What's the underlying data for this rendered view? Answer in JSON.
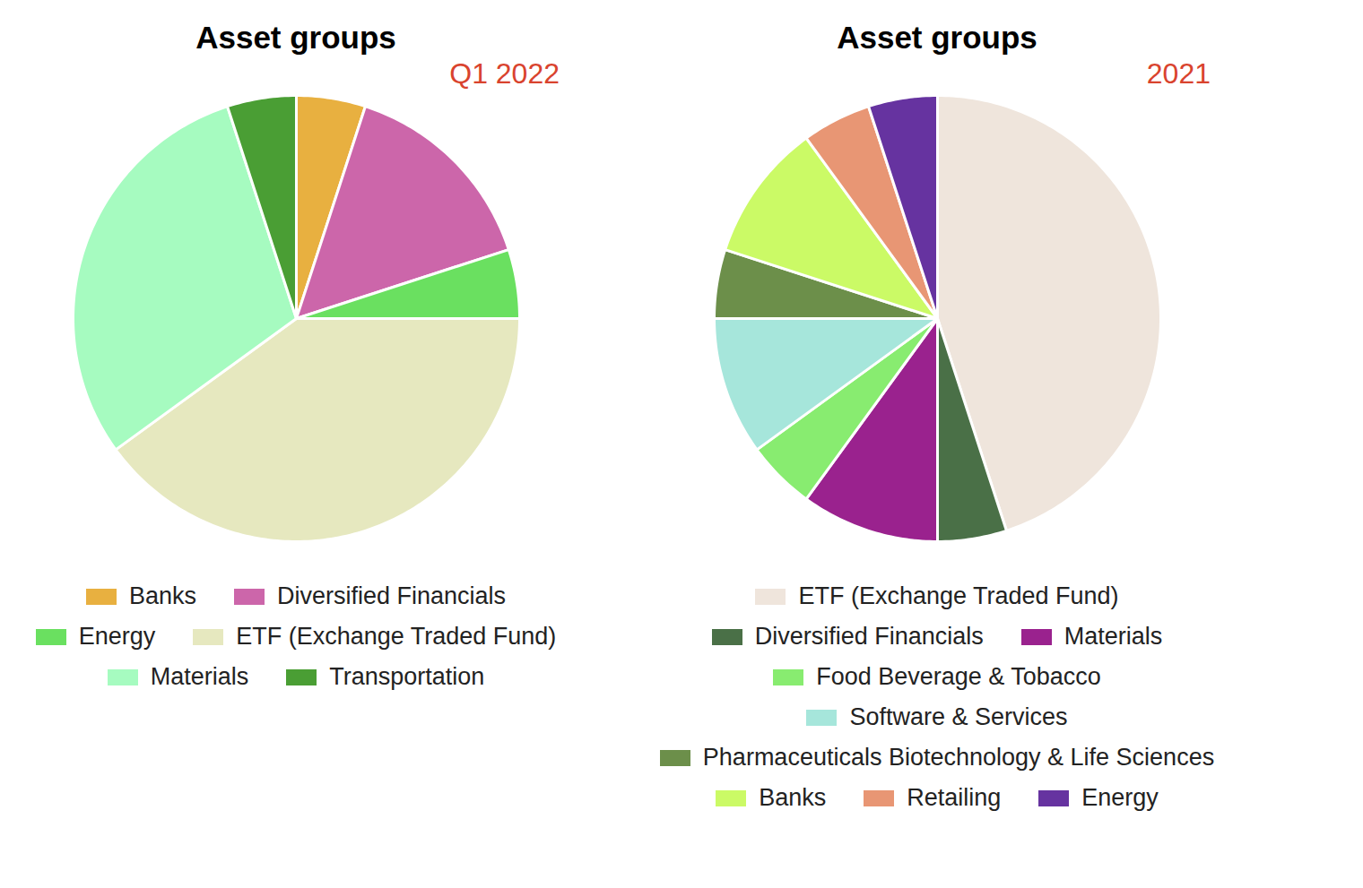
{
  "chart_data": [
    {
      "type": "pie",
      "title": "Asset groups",
      "subtitle": "Q1 2022",
      "categories": [
        "Banks",
        "Diversified Financials",
        "Energy",
        "ETF (Exchange Traded Fund)",
        "Materials",
        "Transportation"
      ],
      "values": [
        5,
        15,
        5,
        40,
        30,
        5
      ],
      "colors": [
        "#e8b040",
        "#cc66aa",
        "#6ae060",
        "#e6e8bf",
        "#a6fbc0",
        "#4a9e34"
      ],
      "legend": "bottom"
    },
    {
      "type": "pie",
      "title": "Asset groups",
      "subtitle": "2021",
      "categories": [
        "ETF (Exchange Traded Fund)",
        "Diversified Financials",
        "Materials",
        "Food Beverage & Tobacco",
        "Software & Services",
        "Pharmaceuticals Biotechnology & Life Sciences",
        "Banks",
        "Retailing",
        "Energy"
      ],
      "values": [
        45,
        5,
        10,
        5,
        10,
        5,
        10,
        5,
        5
      ],
      "colors": [
        "#efe5dc",
        "#4a7047",
        "#9a228e",
        "#88ec70",
        "#a6e6db",
        "#6c8f4a",
        "#cbfa66",
        "#e89674",
        "#6633a0"
      ],
      "legend": "bottom"
    }
  ]
}
